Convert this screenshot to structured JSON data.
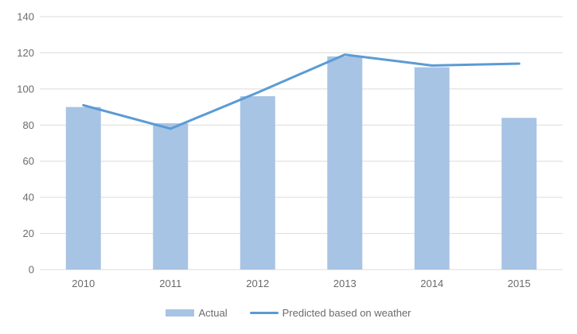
{
  "chart_data": {
    "type": "bar",
    "subtype": "combo-bar-line",
    "title": "",
    "xlabel": "",
    "ylabel": "",
    "categories": [
      "2010",
      "2011",
      "2012",
      "2013",
      "2014",
      "2015"
    ],
    "series": [
      {
        "name": "Actual",
        "type": "bar",
        "color": "#A7C4E4",
        "values": [
          90,
          81,
          96,
          118,
          112,
          84
        ]
      },
      {
        "name": "Predicted based on weather",
        "type": "line",
        "color": "#5B9BD5",
        "values": [
          91,
          78,
          98,
          119,
          113,
          114
        ]
      }
    ],
    "ylim": [
      0,
      140
    ],
    "yticks": [
      0,
      20,
      40,
      60,
      80,
      100,
      120,
      140
    ],
    "grid": true,
    "legend_position": "bottom"
  },
  "colors": {
    "background": "#FFFFFF",
    "gridline": "#DCDCDC",
    "axis_text": "#6B6B6B",
    "bar_fill": "#A7C4E4",
    "line_stroke": "#5B9BD5"
  },
  "legend": {
    "items": [
      {
        "label": "Actual"
      },
      {
        "label": "Predicted based on weather"
      }
    ]
  }
}
